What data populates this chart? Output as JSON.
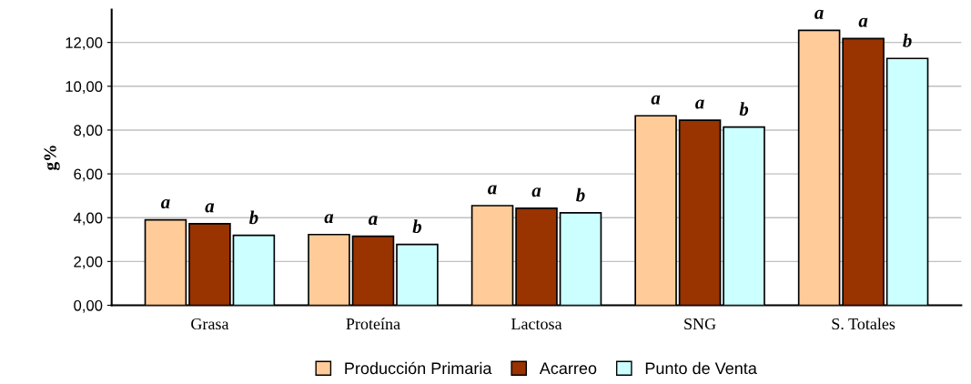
{
  "chart_data": {
    "type": "bar",
    "ylabel": "g%",
    "categories": [
      "Grasa",
      "Proteína",
      "Lactosa",
      "SNG",
      "S. Totales"
    ],
    "series": [
      {
        "name": "Producción Primaria",
        "color": "#ffcc99",
        "values": [
          3.9,
          3.23,
          4.55,
          8.65,
          12.55
        ]
      },
      {
        "name": "Acarreo",
        "color": "#993300",
        "values": [
          3.72,
          3.15,
          4.43,
          8.45,
          12.18
        ]
      },
      {
        "name": "Punto de Venta",
        "color": "#ccffff",
        "values": [
          3.19,
          2.78,
          4.22,
          8.14,
          11.27
        ]
      }
    ],
    "annotations": [
      "a",
      "a",
      "b",
      "a",
      "a",
      "b",
      "a",
      "a",
      "b",
      "a",
      "a",
      "b",
      "a",
      "a",
      "b"
    ],
    "ylim": [
      0,
      13.5
    ],
    "yticks": [
      {
        "value": 0,
        "label": "0,00"
      },
      {
        "value": 2,
        "label": "2,00"
      },
      {
        "value": 4,
        "label": "4,00"
      },
      {
        "value": 6,
        "label": "6,00"
      },
      {
        "value": 8,
        "label": "8,00"
      },
      {
        "value": 10,
        "label": "10,00"
      },
      {
        "value": 12,
        "label": "12,00"
      }
    ],
    "grid": "y",
    "legend": "bottom"
  }
}
